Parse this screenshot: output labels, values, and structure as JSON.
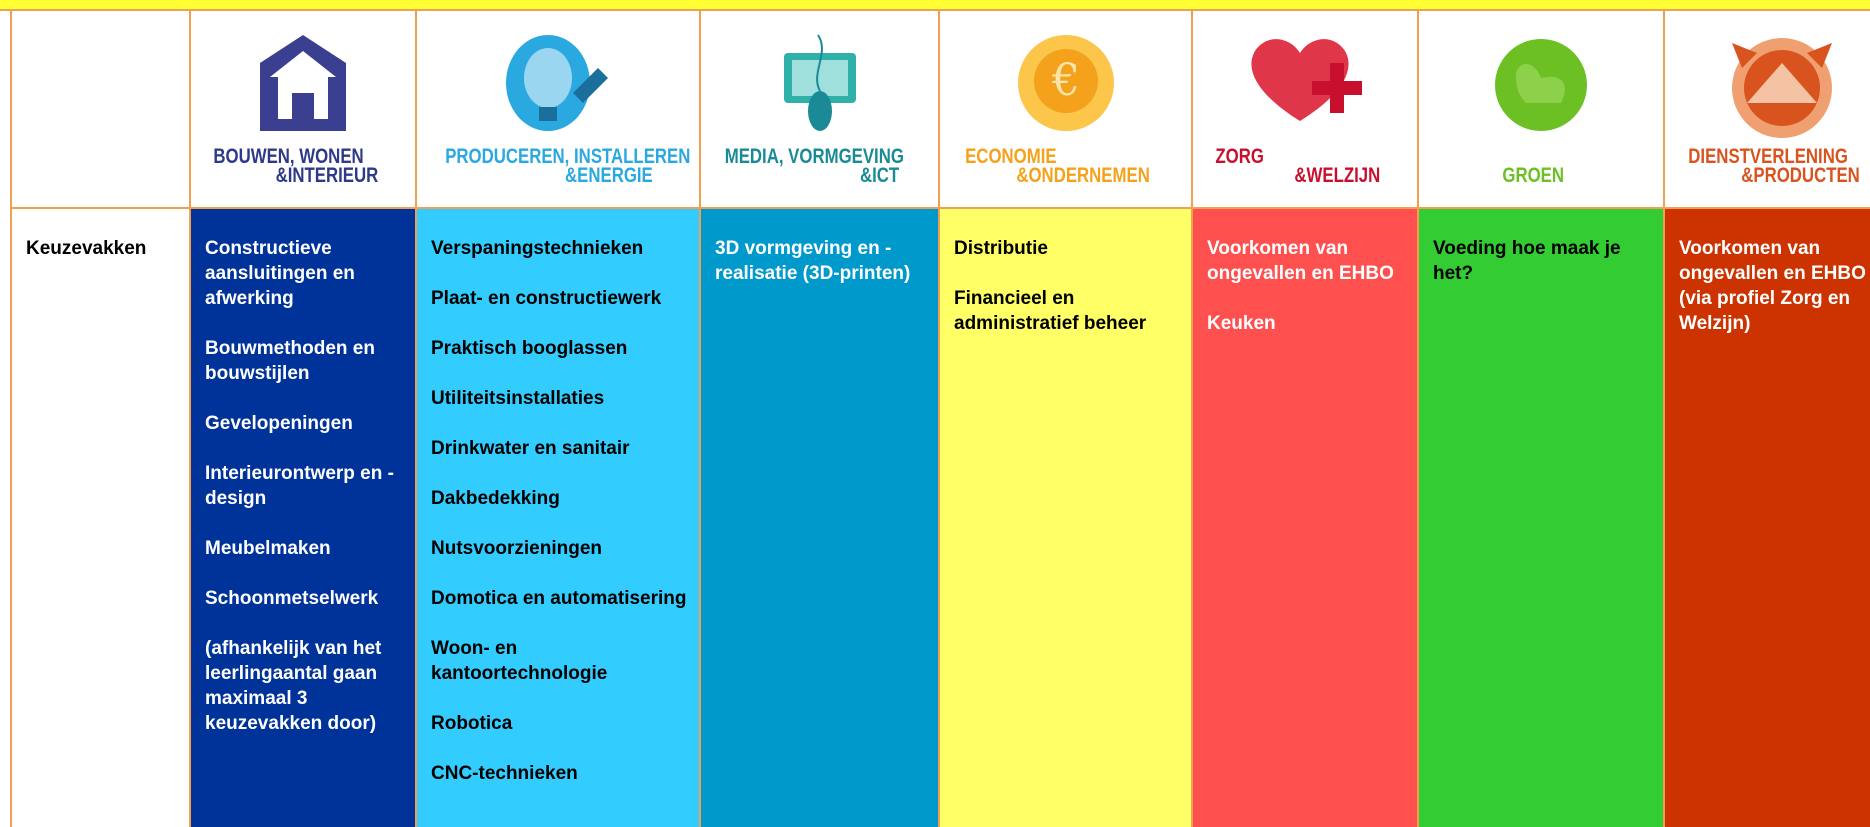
{
  "table": {
    "row_label": "Keuzevakken",
    "columns": [
      {
        "title": [
          "BOUWEN, WONEN",
          "&INTERIEUR"
        ],
        "items": [
          "Constructieve aansluitingen en afwerking",
          "Bouwmethoden en bouwstijlen",
          "Gevelopeningen",
          "Interieurontwerp en -design",
          "Meubelmaken",
          "Schoonmetselwerk",
          "(afhankelijk van het leerlingaantal gaan maximaal 3 keuzevakken door)"
        ]
      },
      {
        "title": [
          "PRODUCEREN, INSTALLEREN",
          "&ENERGIE"
        ],
        "items": [
          "Verspaningstechnieken",
          "Plaat- en constructiewerk",
          "Praktisch booglassen",
          "Utiliteitsinstallaties",
          "Drinkwater en sanitair",
          "Dakbedekking",
          "Nutsvoorzieningen",
          "Domotica en automatisering",
          "Woon- en kantoortechnologie",
          "Robotica",
          "CNC-technieken"
        ]
      },
      {
        "title": [
          "MEDIA, VORMGEVING",
          "&ICT"
        ],
        "items": [
          "3D vormgeving en -realisatie  (3D-printen)"
        ]
      },
      {
        "title": [
          "ECONOMIE",
          "&ONDERNEMEN"
        ],
        "items": [
          "Distributie",
          "Financieel en administratief beheer"
        ]
      },
      {
        "title": [
          "ZORG",
          "&WELZIJN"
        ],
        "items": [
          "Voorkomen van ongevallen en EHBO",
          "Keuken"
        ]
      },
      {
        "title": [
          "GROEN"
        ],
        "items": [
          "Voeding hoe maak je het?"
        ]
      },
      {
        "title": [
          "DIENSTVERLENING",
          "&PRODUCTEN"
        ],
        "items": [
          "Voorkomen van ongevallen en EHBO (via profiel Zorg en Welzijn)"
        ]
      }
    ]
  }
}
